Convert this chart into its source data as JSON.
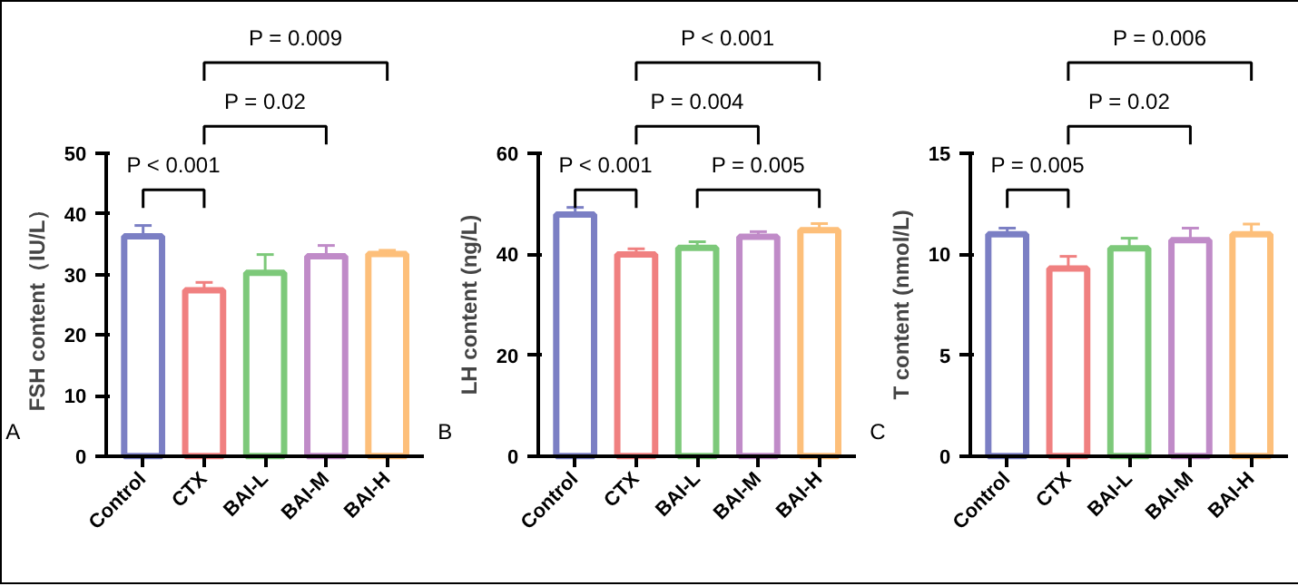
{
  "chart_data": [
    {
      "type": "bar",
      "categories": [
        "Control",
        "CTX",
        "BAI-L",
        "BAI-M",
        "BAI-H"
      ],
      "colors": [
        "#7b7fc4",
        "#f08080",
        "#7dc97a",
        "#c08bc8",
        "#fdbf7a"
      ],
      "values": [
        36.3,
        27.4,
        30.3,
        33.0,
        33.4
      ],
      "errors": [
        [
          36.3,
          38.1
        ],
        [
          27.4,
          28.7
        ],
        [
          30.3,
          33.3
        ],
        [
          33.0,
          34.8
        ],
        [
          33.4,
          34.0
        ]
      ],
      "ylabel": "FSH content（IU/L）",
      "ylim": [
        0,
        50
      ],
      "yticks": [
        0,
        10,
        20,
        30,
        40,
        50
      ],
      "grid": false,
      "annotations": [
        "A",
        "P < 0.001",
        "P = 0.02",
        "P = 0.009"
      ]
    },
    {
      "type": "bar",
      "categories": [
        "Control",
        "CTX",
        "BAI-L",
        "BAI-M",
        "BAI-H"
      ],
      "colors": [
        "#7b7fc4",
        "#f08080",
        "#7dc97a",
        "#c08bc8",
        "#fdbf7a"
      ],
      "values": [
        47.9,
        40.0,
        41.3,
        43.5,
        44.8
      ],
      "errors": [
        [
          47.9,
          49.3
        ],
        [
          40.0,
          41.1
        ],
        [
          41.3,
          42.5
        ],
        [
          43.5,
          44.5
        ],
        [
          44.8,
          46.1
        ]
      ],
      "ylabel": "LH content (ng/L)",
      "ylim": [
        0,
        60
      ],
      "yticks": [
        0,
        20,
        40,
        60
      ],
      "grid": false,
      "annotations": [
        "B",
        "P < 0.001",
        "P = 0.005",
        "P = 0.004",
        "P < 0.001"
      ]
    },
    {
      "type": "bar",
      "categories": [
        "Control",
        "CTX",
        "BAI-L",
        "BAI-M",
        "BAI-H"
      ],
      "colors": [
        "#7b7fc4",
        "#f08080",
        "#7dc97a",
        "#c08bc8",
        "#fdbf7a"
      ],
      "values": [
        11.0,
        9.3,
        10.3,
        10.7,
        11.0
      ],
      "errors": [
        [
          11.0,
          11.3
        ],
        [
          9.3,
          9.9
        ],
        [
          10.3,
          10.8
        ],
        [
          10.7,
          11.3
        ],
        [
          11.0,
          11.5
        ]
      ],
      "ylabel": "T content (nmol/L)",
      "ylim": [
        0,
        15
      ],
      "yticks": [
        0,
        5,
        10,
        15
      ],
      "grid": false,
      "annotations": [
        "C",
        "P = 0.005",
        "P = 0.02",
        "P = 0.006"
      ]
    }
  ]
}
